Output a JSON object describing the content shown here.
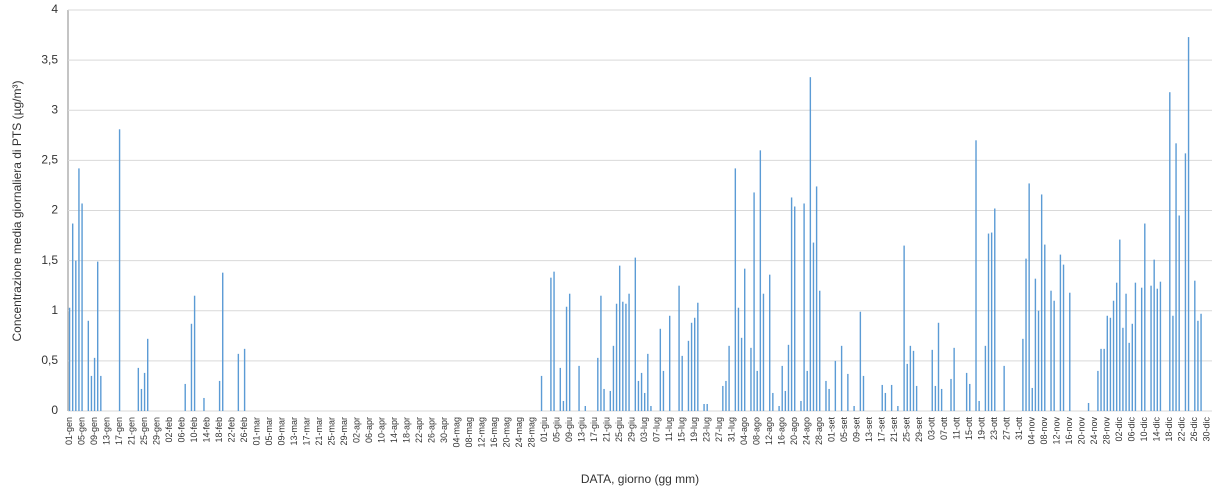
{
  "chart_data": {
    "type": "bar",
    "y_label": "Concentrazione media giornaliera di PTS (µg/m³)",
    "x_label": "DATA, giorno (gg mm)",
    "color": "#5b9bd5",
    "grid": true,
    "ylim": [
      0,
      4
    ],
    "yticks": [
      0,
      {
        "value": 0.5,
        "label": "0,5"
      },
      1,
      {
        "value": 1.5,
        "label": "1,5"
      },
      2,
      {
        "value": 2.5,
        "label": "2,5"
      },
      3,
      {
        "value": 3.5,
        "label": "3,5"
      },
      4
    ],
    "categories": [
      "01-gen",
      null,
      null,
      null,
      "05-gen",
      null,
      null,
      null,
      "09-gen",
      null,
      null,
      null,
      "13-gen",
      null,
      null,
      null,
      "17-gen",
      null,
      null,
      null,
      "21-gen",
      null,
      null,
      null,
      "25-gen",
      null,
      null,
      null,
      "29-gen",
      null,
      null,
      null,
      "02-feb",
      null,
      null,
      null,
      "06-feb",
      null,
      null,
      null,
      "10-feb",
      null,
      null,
      null,
      "14-feb",
      null,
      null,
      null,
      "18-feb",
      null,
      null,
      null,
      "22-feb",
      null,
      null,
      null,
      "26-feb",
      null,
      null,
      null,
      "01-mar",
      null,
      null,
      null,
      "05-mar",
      null,
      null,
      null,
      "09-mar",
      null,
      null,
      null,
      "13-mar",
      null,
      null,
      null,
      "17-mar",
      null,
      null,
      null,
      "21-mar",
      null,
      null,
      null,
      "25-mar",
      null,
      null,
      null,
      "29-mar",
      null,
      null,
      null,
      "02-apr",
      null,
      null,
      null,
      "06-apr",
      null,
      null,
      null,
      "10-apr",
      null,
      null,
      null,
      "14-apr",
      null,
      null,
      null,
      "18-apr",
      null,
      null,
      null,
      "22-apr",
      null,
      null,
      null,
      "26-apr",
      null,
      null,
      null,
      "30-apr",
      null,
      null,
      null,
      "04-mag",
      null,
      null,
      null,
      "08-mag",
      null,
      null,
      null,
      "12-mag",
      null,
      null,
      null,
      "16-mag",
      null,
      null,
      null,
      "20-mag",
      null,
      null,
      null,
      "24-mag",
      null,
      null,
      null,
      "28-mag",
      null,
      null,
      null,
      "01-giu",
      null,
      null,
      null,
      "05-giu",
      null,
      null,
      null,
      "09-giu",
      null,
      null,
      null,
      "13-giu",
      null,
      null,
      null,
      "17-giu",
      null,
      null,
      null,
      "21-giu",
      null,
      null,
      null,
      "25-giu",
      null,
      null,
      null,
      "29-giu",
      null,
      null,
      null,
      "03-lug",
      null,
      null,
      null,
      "07-lug",
      null,
      null,
      null,
      "11-lug",
      null,
      null,
      null,
      "15-lug",
      null,
      null,
      null,
      "19-lug",
      null,
      null,
      null,
      "23-lug",
      null,
      null,
      null,
      "27-lug",
      null,
      null,
      null,
      "31-lug",
      null,
      null,
      null,
      "04-ago",
      null,
      null,
      null,
      "08-ago",
      null,
      null,
      null,
      "12-ago",
      null,
      null,
      null,
      "16-ago",
      null,
      null,
      null,
      "20-ago",
      null,
      null,
      null,
      "24-ago",
      null,
      null,
      null,
      "28-ago",
      null,
      null,
      null,
      "01-set",
      null,
      null,
      null,
      "05-set",
      null,
      null,
      null,
      "09-set",
      null,
      null,
      null,
      "13-set",
      null,
      null,
      null,
      "17-set",
      null,
      null,
      null,
      "21-set",
      null,
      null,
      null,
      "25-set",
      null,
      null,
      null,
      "29-set",
      null,
      null,
      null,
      "03-ott",
      null,
      null,
      null,
      "07-ott",
      null,
      null,
      null,
      "11-ott",
      null,
      null,
      null,
      "15-ott",
      null,
      null,
      null,
      "19-ott",
      null,
      null,
      null,
      "23-ott",
      null,
      null,
      null,
      "27-ott",
      null,
      null,
      null,
      "31-ott",
      null,
      null,
      null,
      "04-nov",
      null,
      null,
      null,
      "08-nov",
      null,
      null,
      null,
      "12-nov",
      null,
      null,
      null,
      "16-nov",
      null,
      null,
      null,
      "20-nov",
      null,
      null,
      null,
      "24-nov",
      null,
      null,
      null,
      "28-nov",
      null,
      null,
      null,
      "02-dic",
      null,
      null,
      null,
      "06-dic",
      null,
      null,
      null,
      "10-dic",
      null,
      null,
      null,
      "14-dic",
      null,
      null,
      null,
      "18-dic",
      null,
      null,
      null,
      "22-dic",
      null,
      null,
      null,
      "26-dic",
      null,
      null,
      null,
      "30-dic",
      null
    ],
    "values": [
      1.03,
      1.87,
      1.5,
      2.42,
      2.07,
      null,
      0.9,
      0.35,
      0.53,
      1.49,
      0.35,
      null,
      null,
      null,
      null,
      null,
      2.81,
      null,
      null,
      null,
      null,
      null,
      0.43,
      0.22,
      0.38,
      0.72,
      null,
      null,
      null,
      null,
      null,
      null,
      null,
      null,
      null,
      null,
      null,
      0.27,
      null,
      0.87,
      1.15,
      null,
      null,
      0.13,
      null,
      null,
      null,
      null,
      0.3,
      1.38,
      null,
      null,
      null,
      null,
      0.57,
      null,
      0.62,
      null,
      null,
      null,
      null,
      null,
      null,
      null,
      null,
      null,
      null,
      null,
      null,
      null,
      null,
      null,
      null,
      null,
      null,
      null,
      null,
      null,
      null,
      null,
      null,
      null,
      null,
      null,
      null,
      null,
      null,
      null,
      null,
      null,
      null,
      null,
      null,
      null,
      null,
      null,
      null,
      null,
      null,
      null,
      null,
      null,
      null,
      null,
      null,
      null,
      null,
      null,
      null,
      null,
      null,
      null,
      null,
      null,
      null,
      null,
      null,
      null,
      null,
      null,
      null,
      null,
      null,
      null,
      null,
      null,
      null,
      null,
      null,
      null,
      null,
      null,
      null,
      null,
      null,
      null,
      null,
      null,
      null,
      null,
      null,
      null,
      null,
      null,
      null,
      null,
      null,
      null,
      null,
      null,
      null,
      0.35,
      null,
      null,
      1.33,
      1.39,
      null,
      0.43,
      0.1,
      1.04,
      1.17,
      null,
      null,
      0.45,
      null,
      0.05,
      null,
      null,
      null,
      0.53,
      1.15,
      0.22,
      null,
      0.2,
      0.65,
      1.07,
      1.45,
      1.09,
      1.07,
      1.17,
      null,
      1.53,
      0.3,
      0.38,
      0.18,
      0.57,
      0.05,
      null,
      null,
      0.82,
      0.4,
      null,
      0.95,
      null,
      null,
      1.25,
      0.55,
      null,
      0.7,
      0.88,
      0.93,
      1.08,
      null,
      0.07,
      0.07,
      null,
      null,
      null,
      null,
      0.25,
      0.3,
      0.65,
      null,
      2.42,
      1.03,
      0.73,
      1.42,
      null,
      0.63,
      2.18,
      0.4,
      2.6,
      1.17,
      null,
      1.36,
      0.18,
      null,
      0.05,
      0.45,
      0.2,
      0.66,
      2.13,
      2.04,
      null,
      0.1,
      2.07,
      0.4,
      3.33,
      1.68,
      2.24,
      1.2,
      null,
      0.3,
      0.22,
      null,
      0.5,
      null,
      0.65,
      null,
      0.37,
      null,
      0.05,
      null,
      0.99,
      0.35,
      null,
      null,
      null,
      null,
      null,
      0.26,
      0.18,
      null,
      0.26,
      null,
      0.05,
      null,
      1.65,
      0.47,
      0.65,
      0.6,
      0.25,
      null,
      null,
      null,
      null,
      0.61,
      0.25,
      0.88,
      0.22,
      null,
      null,
      0.32,
      0.63,
      null,
      null,
      null,
      0.38,
      0.27,
      null,
      2.7,
      0.1,
      null,
      0.65,
      1.77,
      1.78,
      2.02,
      null,
      null,
      0.45,
      null,
      null,
      null,
      null,
      null,
      0.72,
      1.52,
      2.27,
      0.23,
      1.32,
      1.0,
      2.16,
      1.66,
      null,
      1.2,
      1.1,
      null,
      1.56,
      1.46,
      null,
      1.18,
      null,
      null,
      null,
      null,
      null,
      0.08,
      null,
      null,
      0.4,
      0.62,
      0.62,
      0.95,
      0.93,
      1.1,
      1.28,
      1.71,
      0.83,
      1.17,
      0.68,
      0.87,
      1.28,
      null,
      1.23,
      1.87,
      null,
      1.25,
      1.51,
      1.22,
      1.29,
      null,
      null,
      3.18,
      0.95,
      2.67,
      1.95,
      null,
      2.57,
      3.73,
      null,
      1.3,
      0.9,
      0.97,
      null,
      null,
      null
    ]
  }
}
